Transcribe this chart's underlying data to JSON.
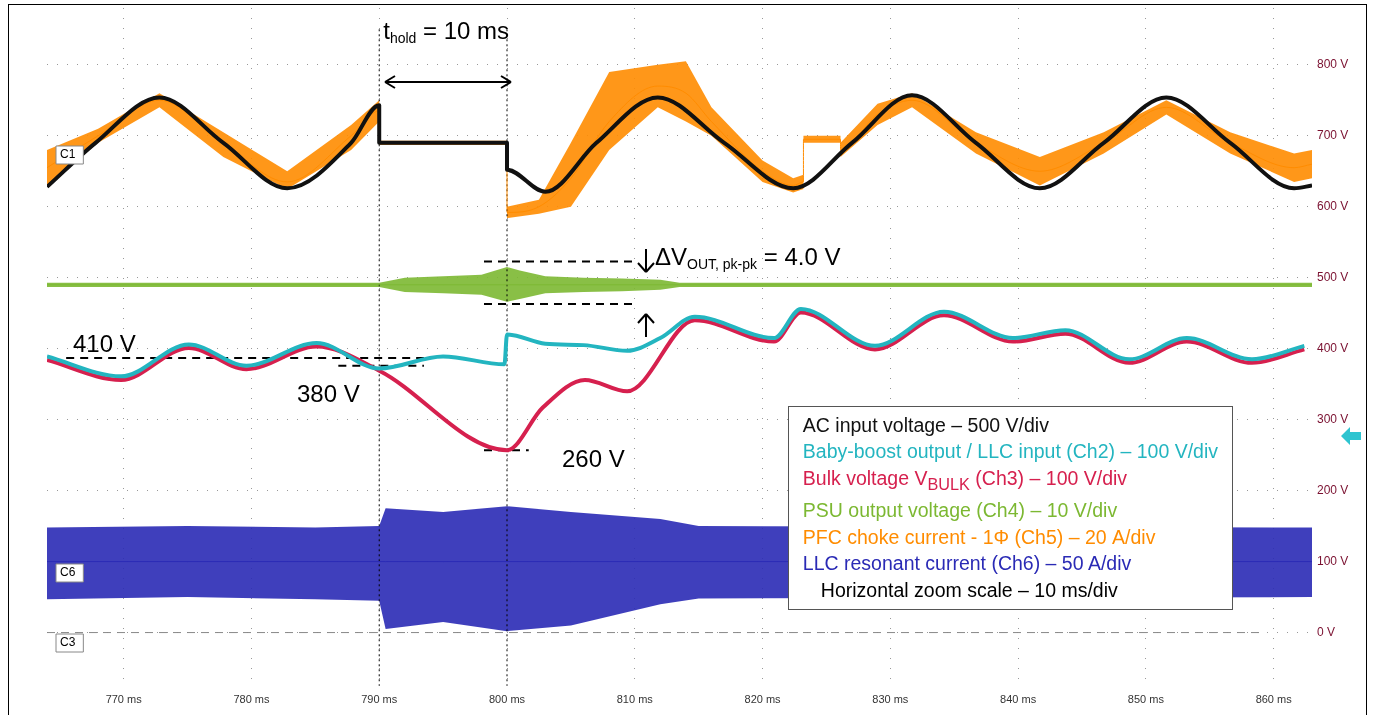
{
  "chart_data": {
    "type": "line",
    "xlim": [
      764,
      863
    ],
    "ylim": [
      -75,
      880
    ],
    "xticks": [
      {
        "value": 770,
        "label": "770 ms"
      },
      {
        "value": 780,
        "label": "780 ms"
      },
      {
        "value": 790,
        "label": "790 ms"
      },
      {
        "value": 800,
        "label": "800 ms"
      },
      {
        "value": 810,
        "label": "810 ms"
      },
      {
        "value": 820,
        "label": "820 ms"
      },
      {
        "value": 830,
        "label": "830 ms"
      },
      {
        "value": 840,
        "label": "840 ms"
      },
      {
        "value": 850,
        "label": "850 ms"
      },
      {
        "value": 860,
        "label": "860 ms"
      }
    ],
    "yticks": [
      {
        "value": 0,
        "label": "0 V"
      },
      {
        "value": 100,
        "label": "100 V"
      },
      {
        "value": 200,
        "label": "200 V"
      },
      {
        "value": 300,
        "label": "300 V"
      },
      {
        "value": 400,
        "label": "400 V"
      },
      {
        "value": 500,
        "label": "500 V"
      },
      {
        "value": 600,
        "label": "600 V"
      },
      {
        "value": 700,
        "label": "700 V"
      },
      {
        "value": 800,
        "label": "800 V"
      }
    ],
    "grid": true,
    "legend": "bottom right",
    "series": [
      {
        "name": "AC input voltage – 500 V/div",
        "color": "#111111",
        "x": [
          764,
          767.8,
          772.8,
          777.8,
          782.8,
          787.8,
          790,
          790,
          800,
          800,
          803,
          807,
          811.8,
          817,
          822.4,
          827,
          831.7,
          836.7,
          841.7,
          846.7,
          851.6,
          856.6,
          861.6,
          863
        ],
        "values": [
          628,
          690,
          754,
          690,
          626,
          690,
          743,
          690,
          690,
          652,
          621,
          690,
          754,
          690,
          626,
          690,
          757,
          690,
          626,
          690,
          754,
          690,
          626,
          630
        ]
      },
      {
        "name": "Baby-boost output / LLC input (Ch2) – 100 V/div",
        "color": "#23b5c0",
        "x": [
          764,
          769.8,
          775.1,
          779.6,
          785.1,
          790,
          795,
          799.8,
          800,
          803,
          806,
          809.4,
          812,
          814.7,
          820.9,
          823,
          828.8,
          834.2,
          839.6,
          843.7,
          848.7,
          853.2,
          858.3,
          862.4
        ],
        "values": [
          389,
          361,
          406,
          376,
          408,
          372,
          389,
          378,
          420,
          407,
          405,
          397,
          415,
          445,
          415,
          456,
          404,
          452,
          415,
          426,
          385,
          415,
          385,
          404
        ]
      },
      {
        "name": "Bulk voltage V$_{BULK}$ (Ch3) – 100 V/div",
        "color": "#d6204e",
        "x": [
          764,
          769.8,
          775.1,
          779.6,
          785.1,
          790,
          800,
          802.8,
          806.1,
          809.4,
          814.7,
          820.9,
          823,
          828.8,
          834.2,
          839.6,
          843.7,
          848.7,
          853.2,
          858.3,
          862.4
        ],
        "values": [
          384,
          356,
          401,
          371,
          403,
          369,
          257,
          317,
          356,
          340,
          440,
          410,
          451,
          399,
          447,
          410,
          421,
          380,
          410,
          380,
          399
        ]
      },
      {
        "name": "PSU output voltage (Ch4) – 10 V/div",
        "color": "#7cb832",
        "x": [
          764,
          790,
          792,
          795,
          798,
          800,
          801,
          803,
          806,
          809,
          812,
          813.5,
          863
        ],
        "values": [
          490,
          490,
          490,
          490,
          490,
          490,
          490,
          490,
          490,
          490,
          490,
          490,
          490
        ],
        "lower": [
          487,
          487,
          480,
          478,
          476,
          466,
          470,
          478,
          480,
          481,
          483,
          487,
          487
        ],
        "upper": [
          493,
          493,
          500,
          502,
          504,
          515,
          510,
          502,
          500,
          499,
          497,
          493,
          493
        ]
      },
      {
        "name": "PFC choke current - 1Φ  (Ch5) – 20 A/div",
        "color": "#ff8c00",
        "x": [
          764,
          768,
          772.8,
          777.8,
          782.8,
          787.8,
          790,
          790,
          800,
          800,
          802.5,
          805,
          808,
          811.8,
          814,
          816,
          820,
          822.4,
          823.2,
          823.2,
          826.1,
          826.1,
          829,
          831.7,
          836.7,
          841.7,
          846.7,
          851.6,
          856.6,
          861.6,
          863
        ],
        "values": [
          655,
          700,
          750,
          690,
          635,
          700,
          735,
          690,
          690,
          592,
          600,
          640,
          720,
          770,
          760,
          720,
          650,
          630,
          635,
          695,
          695,
          680,
          730,
          750,
          690,
          650,
          690,
          740,
          690,
          655,
          660
        ],
        "lower": [
          630,
          690,
          740,
          670,
          625,
          680,
          720,
          687,
          687,
          584,
          590,
          600,
          680,
          740,
          720,
          700,
          635,
          620,
          625,
          690,
          690,
          670,
          715,
          740,
          675,
          630,
          675,
          730,
          675,
          635,
          640
        ],
        "upper": [
          680,
          710,
          760,
          705,
          650,
          715,
          750,
          693,
          693,
          600,
          610,
          690,
          790,
          800,
          805,
          740,
          665,
          640,
          645,
          700,
          700,
          690,
          745,
          760,
          705,
          670,
          705,
          750,
          705,
          675,
          680
        ]
      },
      {
        "name": "LLC resonant current (Ch6) – 50 A/div",
        "color": "#2a2ab5",
        "x": [
          764,
          775,
          785,
          790,
          790.5,
          795,
          800,
          805,
          812,
          815,
          863
        ],
        "values": [
          100,
          100,
          100,
          100,
          100,
          100,
          100,
          100,
          100,
          100,
          100
        ],
        "lower": [
          47,
          50,
          47,
          45,
          5,
          15,
          2,
          10,
          40,
          48,
          50
        ],
        "upper": [
          148,
          150,
          148,
          150,
          175,
          170,
          178,
          170,
          160,
          150,
          148
        ]
      },
      {
        "type": "line",
        "color": "#000000",
        "line_style": "dashed",
        "x": [
          765.5,
          793.5
        ],
        "values": [
          387,
          387
        ]
      },
      {
        "type": "line",
        "color": "#000000",
        "line_style": "dashed",
        "x": [
          786.8,
          793.5
        ],
        "values": [
          376,
          376
        ]
      },
      {
        "type": "line",
        "color": "#000000",
        "line_style": "dashed",
        "x": [
          798.2,
          801.7
        ],
        "values": [
          257,
          257
        ]
      },
      {
        "type": "line",
        "color": "#000000",
        "line_style": "dashed",
        "x": [
          798.2,
          810
        ],
        "values": [
          523,
          523
        ]
      },
      {
        "type": "line",
        "color": "#000000",
        "line_style": "dashed",
        "x": [
          798.2,
          810
        ],
        "values": [
          463,
          463
        ]
      }
    ],
    "ref_lines": [
      {
        "axis": "x",
        "value": 790,
        "color": "#000000",
        "line_style": "dotted"
      },
      {
        "axis": "x",
        "value": 800,
        "color": "#000000",
        "line_style": "dotted"
      },
      {
        "axis": "y",
        "value": 0,
        "color": "#888888",
        "line_style": "dashed"
      }
    ],
    "annotations": [
      {
        "text": "t$_{hold}$ = 10 ms",
        "x": 790,
        "y": 794
      },
      "ΔV$_{OUT, pk-pk}$ = 4.0 V",
      "410 V",
      "380 V",
      "260 V",
      "C1",
      "C6",
      "C3",
      "Horizontal zoom scale – 10 ms/div"
    ]
  }
}
